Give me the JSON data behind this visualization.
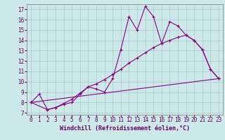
{
  "background_color": "#cce8e8",
  "grid_color": "#aacccc",
  "line_color": "#880088",
  "xlabel": "Windchill (Refroidissement éolien,°C)",
  "xlim": [
    -0.5,
    23.5
  ],
  "ylim": [
    6.8,
    17.5
  ],
  "yticks": [
    7,
    8,
    9,
    10,
    11,
    12,
    13,
    14,
    15,
    16,
    17
  ],
  "xticks": [
    0,
    1,
    2,
    3,
    4,
    5,
    6,
    7,
    8,
    9,
    10,
    11,
    12,
    13,
    14,
    15,
    16,
    17,
    18,
    19,
    20,
    21,
    22,
    23
  ],
  "line1_x": [
    0,
    1,
    2,
    3,
    4,
    5,
    6,
    7,
    8,
    9,
    10,
    11,
    12,
    13,
    14,
    15,
    16,
    17,
    18,
    19,
    20,
    21,
    22,
    23
  ],
  "line1_y": [
    8.0,
    8.8,
    7.3,
    7.5,
    7.8,
    8.0,
    8.8,
    9.5,
    9.3,
    9.0,
    10.3,
    13.1,
    16.3,
    15.0,
    17.3,
    16.3,
    13.7,
    15.8,
    15.4,
    14.5,
    14.0,
    13.1,
    11.2,
    10.3
  ],
  "line2_x": [
    0,
    2,
    3,
    4,
    5,
    6,
    7,
    8,
    9,
    10,
    11,
    12,
    13,
    14,
    15,
    16,
    17,
    18,
    19,
    20,
    21,
    22,
    23
  ],
  "line2_y": [
    8.0,
    7.3,
    7.5,
    7.9,
    8.3,
    8.9,
    9.5,
    9.8,
    10.2,
    10.7,
    11.2,
    11.8,
    12.3,
    12.8,
    13.3,
    13.7,
    14.0,
    14.3,
    14.5,
    14.0,
    13.1,
    11.2,
    10.3
  ],
  "line3_x": [
    0,
    23
  ],
  "line3_y": [
    8.0,
    10.3
  ],
  "font_size_label": 6,
  "font_size_tick": 5.5
}
